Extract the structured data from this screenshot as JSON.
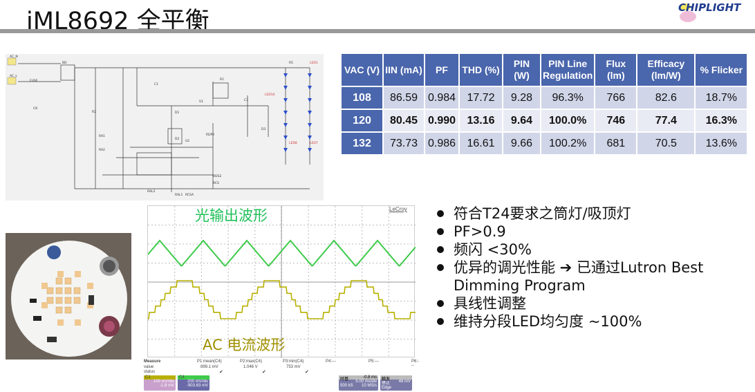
{
  "title": "iML8692 全平衡",
  "logo_text": "CHIPLIGHT",
  "table": {
    "headers": [
      "VAC (V)",
      "IIN (mA)",
      "PF",
      "THD (%)",
      "PIN (W)",
      "PIN Line Regulation",
      "Flux (lm)",
      "Efficacy (lm/W)",
      "% Flicker"
    ],
    "rows": [
      [
        "108",
        "86.59",
        "0.984",
        "17.72",
        "9.28",
        "96.3%",
        "766",
        "82.6",
        "18.7%"
      ],
      [
        "120",
        "80.45",
        "0.990",
        "13.16",
        "9.64",
        "100.0%",
        "746",
        "77.4",
        "16.3%"
      ],
      [
        "132",
        "73.73",
        "0.986",
        "16.61",
        "9.66",
        "100.2%",
        "681",
        "70.5",
        "13.6%"
      ]
    ]
  },
  "scope": {
    "brand": "LeCroy",
    "light_label": "光输出波形",
    "current_label": "AC 电流波形",
    "measure": {
      "label": "Measure",
      "value_label": "value",
      "status_label": "status",
      "params": [
        {
          "name": "P1:mean(C4)",
          "value": "899.1 mV"
        },
        {
          "name": "P2:max(C4)",
          "value": "1.046 V"
        },
        {
          "name": "P3:min(C4)",
          "value": "753 mV"
        },
        {
          "name": "P4:---",
          "value": ""
        },
        {
          "name": "P5:---",
          "value": ""
        },
        {
          "name": "P6:---",
          "value": ""
        }
      ]
    },
    "c1": {
      "name": "C1",
      "scale": "100 mV/div",
      "offset": "-1.8 mV"
    },
    "c4": {
      "name": "C4",
      "scale": "200 mV/div",
      "offset": "-903.63 mV"
    },
    "timebase": {
      "label": "时基",
      "delay": "-0.8 ms",
      "scale": "5.00 ms/div",
      "samples": "500 kS",
      "rate": "10 MS/s"
    },
    "trigger": {
      "label": "触发",
      "mode": "停止",
      "level": "48 mV",
      "type": "Edge"
    },
    "colors": {
      "light": "#3ecb4a",
      "current": "#b8b000"
    }
  },
  "bullets": [
    "符合T24要求之筒灯/吸顶灯",
    "PF>0.9",
    "频闪 <30%",
    "优异的调光性能 ➔ 已通过Lutron Best Dimming Program",
    "具线性调整",
    "维持分段LED均匀度 ~100%"
  ],
  "schematic_labels": [
    "AC_N",
    "AC_L",
    "FUSE",
    "BD",
    "C1",
    "R1",
    "U1",
    "D1",
    "D2",
    "U2",
    "R2",
    "RA1",
    "RA2",
    "C8",
    "C3",
    "D3",
    "R5",
    "LED1",
    "LED8",
    "LED7",
    "LED14",
    "RDP2",
    "RDS2",
    "RCS",
    "RCSA",
    "RAL1",
    "RAL2"
  ]
}
